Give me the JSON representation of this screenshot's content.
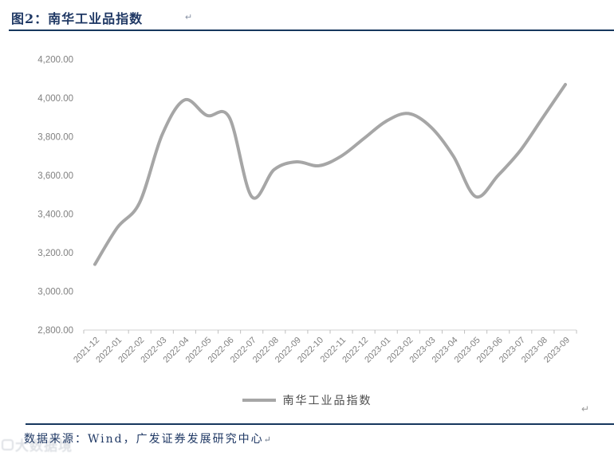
{
  "header": {
    "title": "图2：南华工业品指数",
    "return_mark": "↵"
  },
  "chart_data": {
    "type": "line",
    "title": "图2：南华工业品指数",
    "xlabel": "",
    "ylabel": "",
    "categories": [
      "2021-12",
      "2022-01",
      "2022-02",
      "2022-03",
      "2022-04",
      "2022-05",
      "2022-06",
      "2022-07",
      "2022-08",
      "2022-09",
      "2022-10",
      "2022-11",
      "2022-12",
      "2023-01",
      "2023-02",
      "2023-03",
      "2023-04",
      "2023-05",
      "2023-06",
      "2023-07",
      "2023-08",
      "2023-09"
    ],
    "series": [
      {
        "name": "南华工业品指数",
        "values": [
          3140,
          3330,
          3460,
          3810,
          3990,
          3910,
          3900,
          3490,
          3630,
          3670,
          3650,
          3700,
          3790,
          3880,
          3920,
          3850,
          3700,
          3490,
          3600,
          3730,
          3900,
          4070
        ],
        "color": "#A6A6A6",
        "line_width": 4,
        "smooth": true
      }
    ],
    "ylim": [
      2800,
      4200
    ],
    "y_ticks": [
      {
        "v": 4200,
        "label": "4,200.00"
      },
      {
        "v": 4000,
        "label": "4,000.00"
      },
      {
        "v": 3800,
        "label": "3,800.00"
      },
      {
        "v": 3600,
        "label": "3,600.00"
      },
      {
        "v": 3400,
        "label": "3,400.00"
      },
      {
        "v": 3200,
        "label": "3,200.00"
      },
      {
        "v": 3000,
        "label": "3,000.00"
      },
      {
        "v": 2800,
        "label": "2,800.00"
      }
    ],
    "grid": false,
    "legend_position": "bottom",
    "legend_entries": [
      "南华工业品指数"
    ],
    "axis_text_color": "#808080",
    "axis_line_color": "#D9D9D9"
  },
  "legend": {
    "label": "南华工业品指数"
  },
  "chart_return_mark": "↵",
  "footer": {
    "source": "数据来源：Wind，广发证券发展研究中心",
    "return_mark": "↵"
  },
  "watermark": {
    "text": "大数据境"
  },
  "colors": {
    "accent_navy": "#1F3864",
    "rule_navy": "#17375E",
    "line_gray": "#A6A6A6"
  }
}
